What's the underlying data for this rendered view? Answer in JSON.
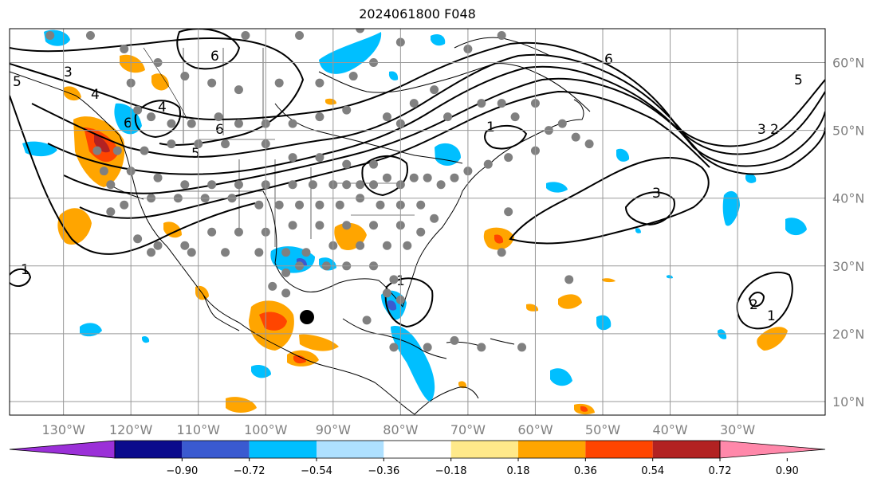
{
  "title": "2024061800 F048",
  "map": {
    "lon_range": [
      -138,
      -17
    ],
    "lat_range": [
      8,
      65
    ],
    "lat_labels": [
      "10°N",
      "20°N",
      "30°N",
      "40°N",
      "50°N",
      "60°N"
    ],
    "lon_labels": [
      "130°W",
      "120°W",
      "110°W",
      "100°W",
      "90°W",
      "80°W",
      "70°W",
      "60°W",
      "50°W",
      "40°W",
      "30°W"
    ],
    "contour_labels": [
      "5",
      "3",
      "4",
      "6",
      "4",
      "6",
      "5",
      "1",
      "6",
      "5",
      "3",
      "2",
      "3",
      "1",
      "1",
      "2",
      "1",
      "6"
    ],
    "station_marker": "black dot",
    "observation_markers": "gray dots"
  },
  "colorbar": {
    "colors": [
      "#9b30d8",
      "#0a0a8c",
      "#3a5ad0",
      "#00bfff",
      "#aee0ff",
      "#ffffff",
      "#ffe98a",
      "#ffa500",
      "#ff4500",
      "#b22222",
      "#ff88aa"
    ],
    "ticks": [
      "−0.90",
      "−0.72",
      "−0.54",
      "−0.36",
      "−0.18",
      "0.18",
      "0.36",
      "0.54",
      "0.72",
      "0.90"
    ]
  }
}
